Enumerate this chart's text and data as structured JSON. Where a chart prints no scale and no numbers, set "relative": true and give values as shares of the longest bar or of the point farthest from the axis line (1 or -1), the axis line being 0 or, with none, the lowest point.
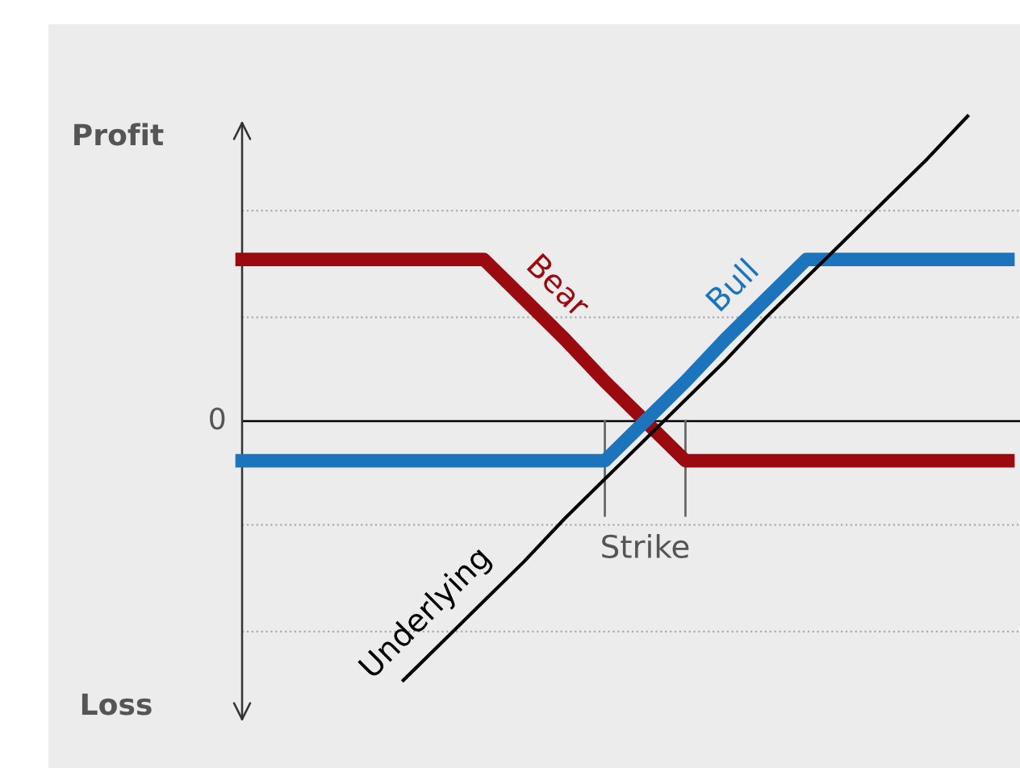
{
  "chart_data": {
    "type": "line",
    "relative": true,
    "categories": [
      null,
      null,
      null,
      null,
      null,
      null,
      null,
      null,
      null,
      null,
      null,
      null,
      null,
      null,
      null,
      null,
      null,
      null,
      null,
      null
    ],
    "series": [
      {
        "name": "Bear",
        "color": "#9b0a0f",
        "values": [
          0.53,
          0.53,
          0.53,
          0.53,
          0.53,
          0.53,
          0.53,
          0.4,
          0.27,
          0.13,
          0.0,
          -0.13,
          -0.13,
          -0.13,
          -0.13,
          -0.13,
          -0.13,
          -0.13,
          -0.13,
          -0.13
        ]
      },
      {
        "name": "Bull",
        "color": "#1b74bc",
        "values": [
          -0.13,
          -0.13,
          -0.13,
          -0.13,
          -0.13,
          -0.13,
          -0.13,
          -0.13,
          -0.13,
          -0.13,
          0.0,
          0.13,
          0.27,
          0.4,
          0.53,
          0.53,
          0.53,
          0.53,
          0.53,
          0.53
        ]
      },
      {
        "name": "Underlying",
        "color": "#000000",
        "values": [
          null,
          null,
          null,
          null,
          -0.85,
          -0.72,
          -0.59,
          -0.46,
          -0.32,
          -0.19,
          -0.06,
          0.07,
          0.2,
          0.34,
          0.47,
          0.6,
          0.73,
          0.86,
          1.0,
          null
        ]
      }
    ],
    "ref_lines": [
      {
        "axis": "y",
        "value": 0,
        "label": "0",
        "color": "#000000",
        "line_style": "solid"
      },
      {
        "axis": "y",
        "value": 0.69,
        "color": "#aaaaaa",
        "line_style": "dotted"
      },
      {
        "axis": "y",
        "value": 0.34,
        "color": "#aaaaaa",
        "line_style": "dotted"
      },
      {
        "axis": "y",
        "value": -0.34,
        "color": "#aaaaaa",
        "line_style": "dotted"
      },
      {
        "axis": "y",
        "value": -0.69,
        "color": "#aaaaaa",
        "line_style": "dotted"
      }
    ],
    "annotations": [
      "Profit",
      "Loss",
      "Strike"
    ],
    "legend": false,
    "grid": false,
    "marker": "none",
    "line_style": "solid"
  }
}
